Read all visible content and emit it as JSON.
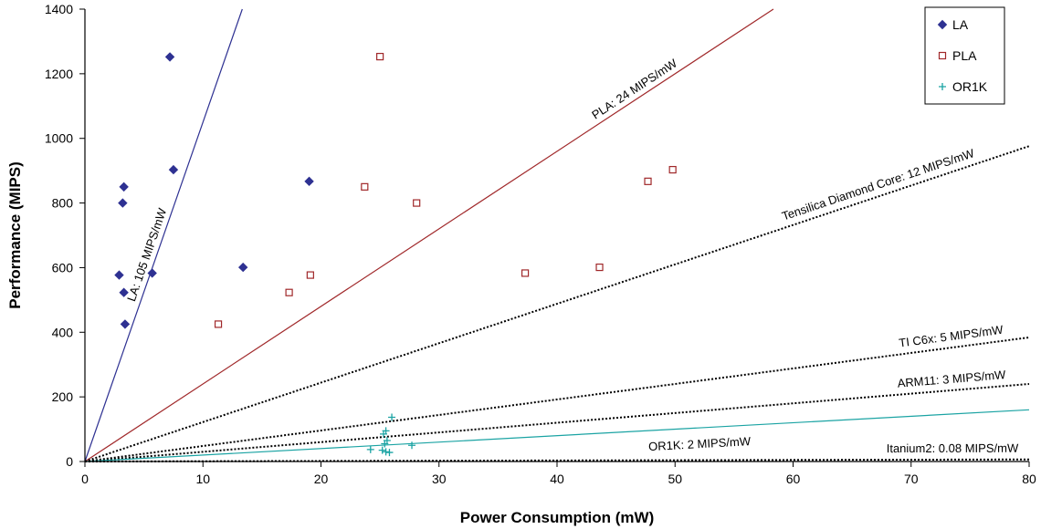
{
  "chart_data": {
    "type": "scatter",
    "title": "",
    "xlabel": "Power Consumption (mW)",
    "ylabel": "Performance (MIPS)",
    "xlim": [
      0,
      80
    ],
    "ylim": [
      0,
      1400
    ],
    "xticks": [
      0,
      10,
      20,
      30,
      40,
      50,
      60,
      70,
      80
    ],
    "yticks": [
      0,
      200,
      400,
      600,
      800,
      1000,
      1200,
      1400
    ],
    "grid": false,
    "legend_position": "top-right",
    "series": [
      {
        "name": "LA",
        "marker": "diamond",
        "color": "#2e3192",
        "points": [
          [
            7.2,
            1252
          ],
          [
            7.5,
            903
          ],
          [
            3.3,
            850
          ],
          [
            3.2,
            800
          ],
          [
            19.0,
            867
          ],
          [
            2.9,
            577
          ],
          [
            5.7,
            583
          ],
          [
            3.3,
            523
          ],
          [
            13.4,
            601
          ],
          [
            3.4,
            425
          ]
        ]
      },
      {
        "name": "PLA",
        "marker": "square",
        "color": "#a0282a",
        "points": [
          [
            25.0,
            1253
          ],
          [
            23.7,
            850
          ],
          [
            28.1,
            800
          ],
          [
            19.1,
            577
          ],
          [
            17.3,
            523
          ],
          [
            11.3,
            425
          ],
          [
            37.3,
            583
          ],
          [
            43.6,
            601
          ],
          [
            47.7,
            867
          ],
          [
            49.8,
            903
          ]
        ]
      },
      {
        "name": "OR1K",
        "marker": "plus",
        "color": "#1aa3a3",
        "points": [
          [
            26.0,
            137
          ],
          [
            25.5,
            95
          ],
          [
            25.3,
            85
          ],
          [
            25.6,
            65
          ],
          [
            25.4,
            55
          ],
          [
            24.2,
            37
          ],
          [
            25.2,
            35
          ],
          [
            25.5,
            30
          ],
          [
            25.8,
            28
          ],
          [
            27.7,
            50
          ]
        ]
      }
    ],
    "reference_lines": [
      {
        "label": "LA: 105 MIPS/mW",
        "slope": 105,
        "style": "solid",
        "color": "#2e3192"
      },
      {
        "label": "PLA: 24 MIPS/mW",
        "slope": 24,
        "style": "solid",
        "color": "#a0282a"
      },
      {
        "label": "Tensilica Diamond Core: 12 MIPS/mW",
        "slope": 12.2,
        "style": "dotted",
        "color": "#000000"
      },
      {
        "label": "TI C6x: 5 MIPS/mW",
        "slope": 4.8,
        "style": "dotted",
        "color": "#000000"
      },
      {
        "label": "ARM11: 3 MIPS/mW",
        "slope": 3.0,
        "style": "dotted",
        "color": "#000000"
      },
      {
        "label": "OR1K: 2 MIPS/mW",
        "slope": 2.0,
        "style": "solid",
        "color": "#1aa3a3"
      },
      {
        "label": "Itanium2: 0.08 MIPS/mW",
        "slope": 0.08,
        "style": "dotted",
        "color": "#000000"
      }
    ]
  }
}
